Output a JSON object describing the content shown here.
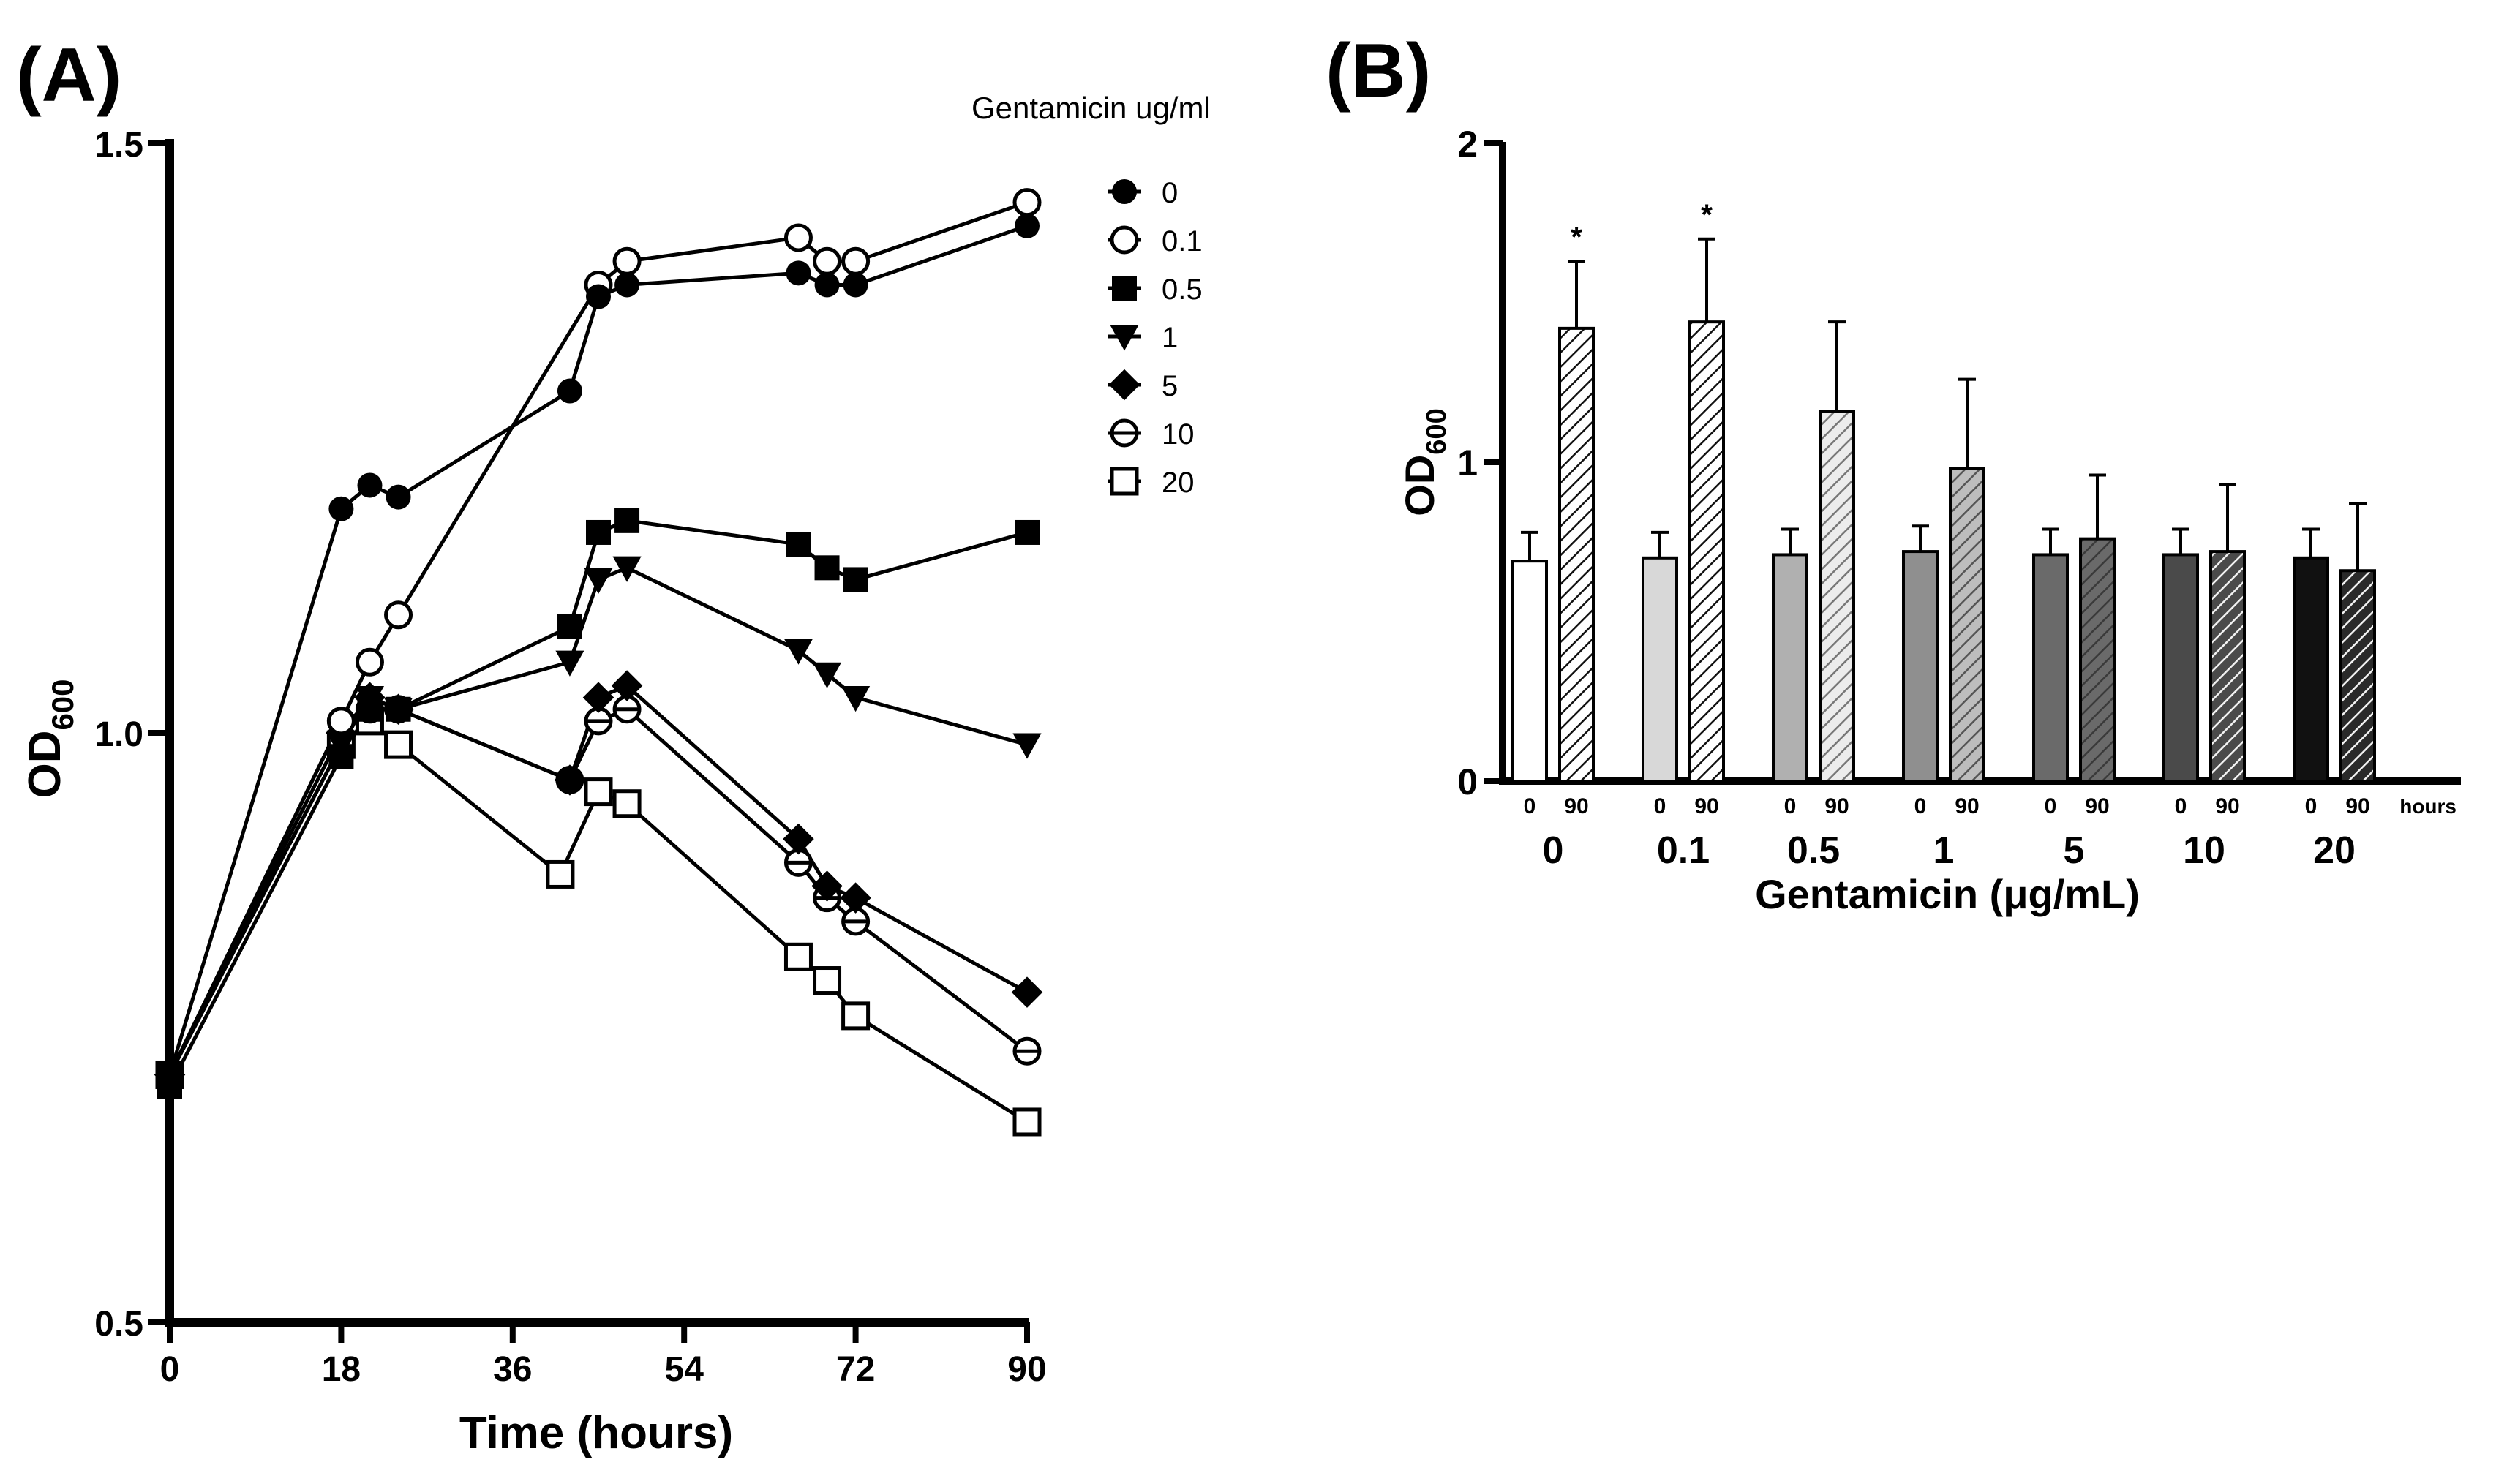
{
  "chart_data": [
    {
      "panel_label": "(A)",
      "type": "line",
      "xlabel": "Time (hours)",
      "ylabel_main": "OD",
      "ylabel_sub": "600",
      "xlim": [
        0,
        90
      ],
      "ylim": [
        0.5,
        1.5
      ],
      "xticks": [
        "0",
        "18",
        "36",
        "54",
        "72",
        "90"
      ],
      "yticks": [
        "0.5",
        "1.0",
        "1.5"
      ],
      "legend_title": "Gentamicin ug/ml",
      "legend_position": "top-right",
      "series": [
        {
          "name": "0",
          "marker": "filled-circle",
          "x": [
            0,
            18,
            21,
            24,
            42,
            45,
            48,
            66,
            69,
            72,
            90
          ],
          "y": [
            0.71,
            1.19,
            1.21,
            1.2,
            1.29,
            1.37,
            1.38,
            1.39,
            1.38,
            1.38,
            1.43
          ]
        },
        {
          "name": "0.1",
          "marker": "open-circle",
          "x": [
            0,
            18,
            21,
            24,
            45,
            48,
            66,
            69,
            72,
            90
          ],
          "y": [
            0.71,
            1.01,
            1.06,
            1.1,
            1.38,
            1.4,
            1.42,
            1.4,
            1.4,
            1.45
          ]
        },
        {
          "name": "0.5",
          "marker": "filled-square",
          "x": [
            0,
            18,
            21,
            24,
            42,
            45,
            48,
            66,
            69,
            72,
            90
          ],
          "y": [
            0.7,
            0.98,
            1.02,
            1.02,
            1.09,
            1.17,
            1.18,
            1.16,
            1.14,
            1.13,
            1.17
          ]
        },
        {
          "name": "1",
          "marker": "filled-triangle-down",
          "x": [
            0,
            18,
            21,
            24,
            42,
            45,
            48,
            66,
            69,
            72,
            90
          ],
          "y": [
            0.71,
            0.99,
            1.03,
            1.02,
            1.06,
            1.13,
            1.14,
            1.07,
            1.05,
            1.03,
            0.99
          ]
        },
        {
          "name": "5",
          "marker": "filled-diamond",
          "x": [
            0,
            18,
            21,
            24,
            42,
            45,
            48,
            66,
            69,
            72,
            90
          ],
          "y": [
            0.71,
            1.0,
            1.03,
            1.02,
            0.96,
            1.03,
            1.04,
            0.91,
            0.87,
            0.86,
            0.78
          ]
        },
        {
          "name": "10",
          "marker": "open-circle-bar",
          "x": [
            0,
            18,
            21,
            24,
            42,
            45,
            48,
            66,
            69,
            72,
            90
          ],
          "y": [
            0.71,
            1.01,
            1.02,
            1.02,
            0.96,
            1.01,
            1.02,
            0.89,
            0.86,
            0.84,
            0.73
          ]
        },
        {
          "name": "20",
          "marker": "open-square",
          "x": [
            0,
            18,
            21,
            24,
            41,
            45,
            48,
            66,
            69,
            72,
            90
          ],
          "y": [
            0.71,
            0.99,
            1.01,
            0.99,
            0.88,
            0.95,
            0.94,
            0.81,
            0.79,
            0.76,
            0.67
          ]
        }
      ]
    },
    {
      "panel_label": "(B)",
      "type": "bar",
      "xlabel": "Gentamicin (μg/mL)",
      "ylabel_main": "OD",
      "ylabel_sub": "600",
      "ylim": [
        0,
        2
      ],
      "yticks": [
        "0",
        "1",
        "2"
      ],
      "hours_label": "hours",
      "bar_time_labels": [
        "0",
        "90"
      ],
      "categories": [
        "0",
        "0.1",
        "0.5",
        "1",
        "5",
        "10",
        "20"
      ],
      "series": [
        {
          "name": "0 hours",
          "values": [
            0.69,
            0.7,
            0.71,
            0.72,
            0.71,
            0.71,
            0.7
          ],
          "errors": [
            0.09,
            0.08,
            0.08,
            0.08,
            0.08,
            0.08,
            0.09
          ]
        },
        {
          "name": "90 hours",
          "values": [
            1.42,
            1.44,
            1.16,
            0.98,
            0.76,
            0.72,
            0.66
          ],
          "errors": [
            0.21,
            0.26,
            0.28,
            0.28,
            0.2,
            0.21,
            0.21
          ]
        }
      ],
      "significance": [
        "*",
        "*",
        "",
        "",
        "",
        "",
        ""
      ],
      "colors": {
        "baseline_fills": [
          "#ffffff",
          "#d8d8d8",
          "#b0b0b0",
          "#8f8f8f",
          "#6a6a6a",
          "#4a4a4a",
          "#111111"
        ],
        "hatch_backgrounds": [
          "#ffffff",
          "#ffffff",
          "#ececec",
          "#bdbdbd",
          "#6a6a6a",
          "#4a4a4a",
          "#2a2a2a"
        ],
        "hatch_lines": [
          "#111111",
          "#111111",
          "#777777",
          "#555555",
          "#3a3a3a",
          "#f2f2f2",
          "#f2f2f2"
        ]
      }
    }
  ]
}
